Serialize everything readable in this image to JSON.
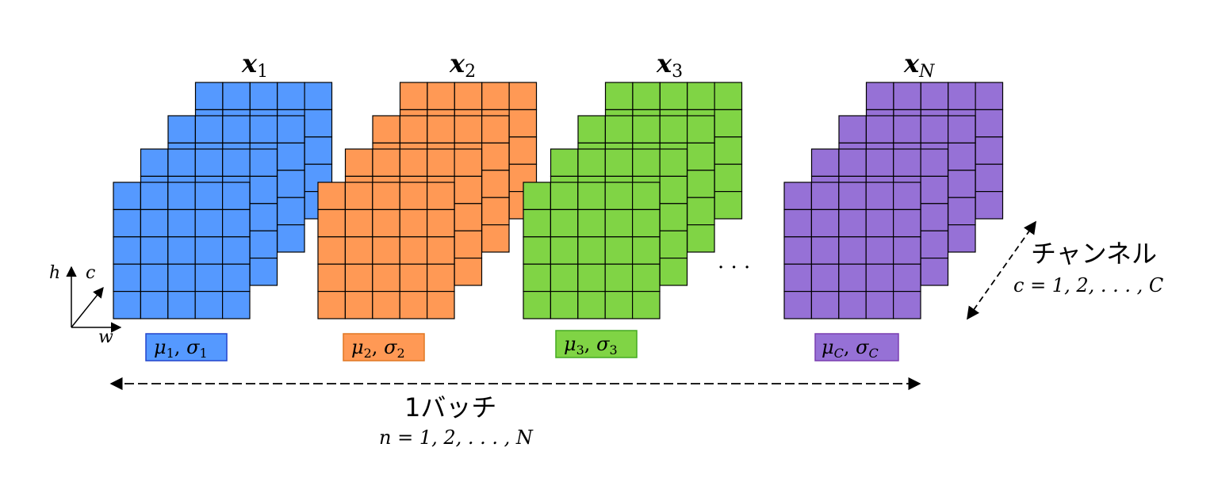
{
  "samples": [
    {
      "id": "x1",
      "label_base": "x",
      "label_sub": "1",
      "stats_label": "μ1, σ1",
      "stats_mu": "μ",
      "stats_mu_sub": "1",
      "stats_sigma": "σ",
      "stats_sigma_sub": "1",
      "fill": "#5599ff",
      "stats_fill": "#5599ff",
      "stats_border": "#2244cc"
    },
    {
      "id": "x2",
      "label_base": "x",
      "label_sub": "2",
      "stats_label": "μ2, σ2",
      "stats_mu": "μ",
      "stats_mu_sub": "2",
      "stats_sigma": "σ",
      "stats_sigma_sub": "2",
      "fill": "#ff9955",
      "stats_fill": "#ff9955",
      "stats_border": "#e07722"
    },
    {
      "id": "x3",
      "label_base": "x",
      "label_sub": "3",
      "stats_label": "μ3, σ3",
      "stats_mu": "μ",
      "stats_mu_sub": "3",
      "stats_sigma": "σ",
      "stats_sigma_sub": "3",
      "fill": "#80d445",
      "stats_fill": "#80d445",
      "stats_border": "#44aa22"
    },
    {
      "id": "xN",
      "label_base": "x",
      "label_sub": "N",
      "stats_label": "μC, σC",
      "stats_mu": "μ",
      "stats_mu_sub": "C",
      "stats_sigma": "σ",
      "stats_sigma_sub": "C",
      "fill": "#9671d6",
      "stats_fill": "#9671d6",
      "stats_border": "#7a3fb0"
    }
  ],
  "ellipsis": "· · ·",
  "axes": {
    "h": "h",
    "c": "c",
    "w": "w"
  },
  "channel": {
    "title": "チャンネル",
    "range": "c = 1, 2, . . . , C"
  },
  "batch": {
    "title": "1バッチ",
    "range": "n = 1, 2, . . . , N"
  }
}
